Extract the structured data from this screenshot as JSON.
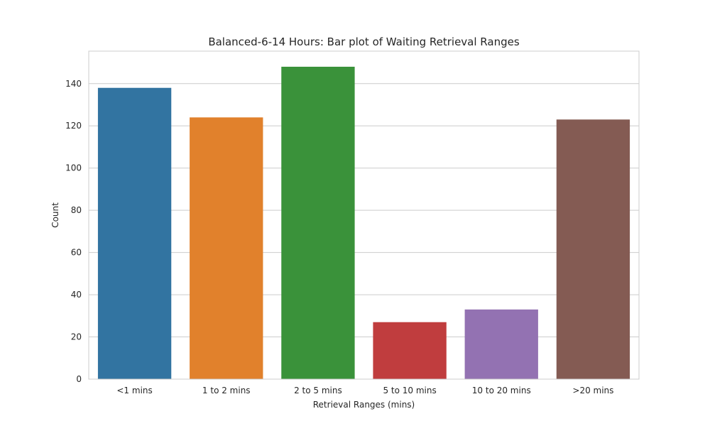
{
  "chart_data": {
    "type": "bar",
    "title": "Balanced-6-14 Hours: Bar plot of Waiting Retrieval Ranges",
    "xlabel": "Retrieval Ranges (mins)",
    "ylabel": "Count",
    "categories": [
      "<1 mins",
      "1 to 2 mins",
      "2 to 5 mins",
      "5 to 10 mins",
      "10 to 20 mins",
      ">20 mins"
    ],
    "values": [
      138,
      124,
      148,
      27,
      33,
      123
    ],
    "colors": [
      "#3274a1",
      "#e1812c",
      "#3a923a",
      "#c03d3e",
      "#9372b2",
      "#845b53"
    ],
    "yticks": [
      0,
      20,
      40,
      60,
      80,
      100,
      120,
      140
    ],
    "ylim": [
      0,
      155.4
    ],
    "grid": true,
    "legend": "none"
  }
}
